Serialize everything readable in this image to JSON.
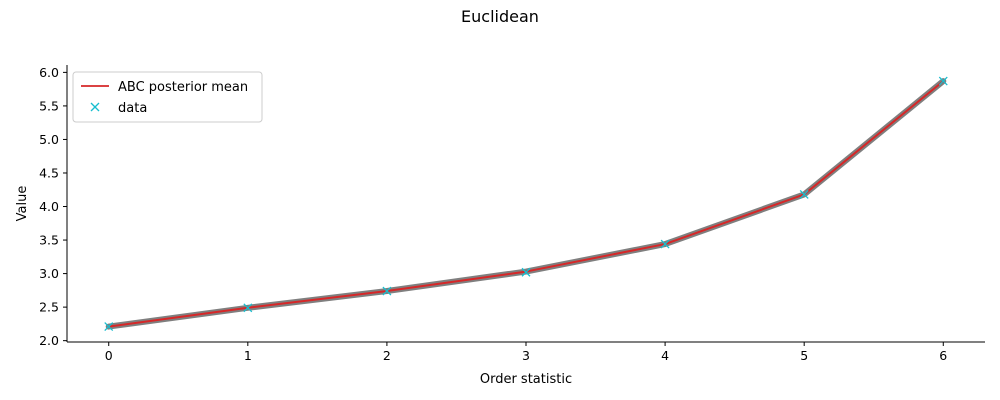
{
  "chart_data": {
    "type": "line",
    "title": "Euclidean",
    "xlabel": "Order statistic",
    "ylabel": "Value",
    "xlim": [
      -0.3,
      6.3
    ],
    "ylim": [
      1.98,
      6.11
    ],
    "x_ticks": [
      "0",
      "1",
      "2",
      "3",
      "4",
      "5",
      "6"
    ],
    "y_ticks": [
      "2.0",
      "2.5",
      "3.0",
      "3.5",
      "4.0",
      "4.5",
      "5.0",
      "5.5",
      "6.0"
    ],
    "legend_position": "top-left",
    "grid": false,
    "x": [
      0,
      1,
      2,
      3,
      4,
      5,
      6
    ],
    "series": [
      {
        "name": "ABC posterior mean",
        "kind": "line",
        "color": "#d62728",
        "band_color": "#7f7f7f",
        "values": [
          2.21,
          2.49,
          2.74,
          3.03,
          3.44,
          4.18,
          5.87
        ]
      },
      {
        "name": "data",
        "kind": "marker",
        "marker": "x",
        "color": "#17becf",
        "values": [
          2.21,
          2.49,
          2.74,
          3.02,
          3.44,
          4.18,
          5.87
        ]
      }
    ]
  }
}
